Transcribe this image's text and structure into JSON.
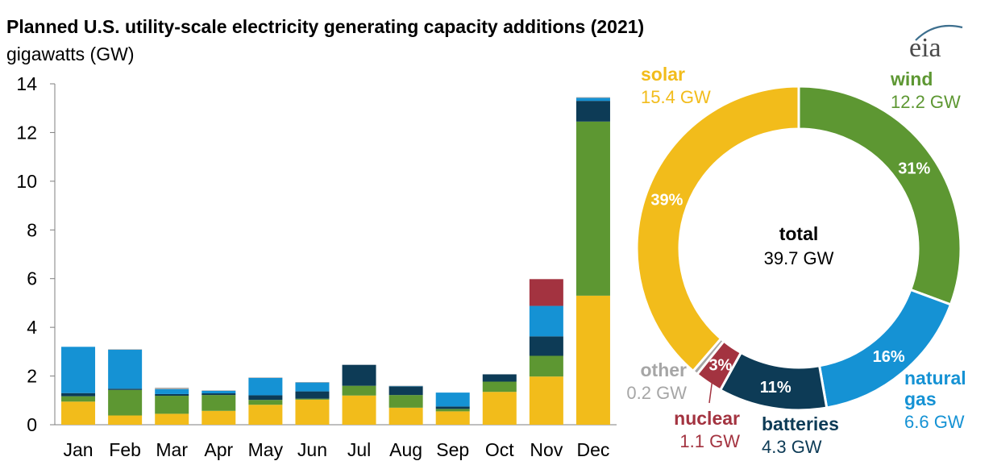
{
  "title": "Planned U.S. utility-scale electricity generating capacity additions (2021)",
  "subtitle": "gigawatts (GW)",
  "logo_text": "eia",
  "colors": {
    "solar": "#f2bc1b",
    "wind": "#5d9732",
    "natural_gas": "#1592d4",
    "batteries": "#0d3b56",
    "nuclear": "#a33340",
    "other": "#a6a6a6"
  },
  "chart_data": [
    {
      "type": "bar",
      "stacked": true,
      "categories": [
        "Jan",
        "Feb",
        "Mar",
        "Apr",
        "May",
        "Jun",
        "Jul",
        "Aug",
        "Sep",
        "Oct",
        "Nov",
        "Dec"
      ],
      "ylim": [
        0,
        14
      ],
      "yticks": [
        "0",
        "2",
        "4",
        "6",
        "8",
        "10",
        "12",
        "14"
      ],
      "grid": false,
      "series": [
        {
          "key": "solar",
          "values": [
            0.95,
            0.38,
            0.45,
            0.57,
            0.82,
            1.03,
            1.2,
            0.7,
            0.55,
            1.35,
            1.98,
            5.3
          ]
        },
        {
          "key": "wind",
          "values": [
            0.22,
            1.05,
            0.74,
            0.65,
            0.2,
            0.04,
            0.4,
            0.52,
            0.1,
            0.42,
            0.85,
            7.15
          ]
        },
        {
          "key": "batteries",
          "values": [
            0.13,
            0.05,
            0.07,
            0.07,
            0.19,
            0.3,
            0.86,
            0.35,
            0.1,
            0.3,
            0.8,
            0.85
          ]
        },
        {
          "key": "natural_gas",
          "values": [
            1.9,
            1.6,
            0.2,
            0.1,
            0.72,
            0.37,
            0,
            0.02,
            0.57,
            0,
            1.25,
            0.12
          ]
        },
        {
          "key": "nuclear",
          "values": [
            0,
            0,
            0,
            0,
            0,
            0,
            0,
            0,
            0,
            0,
            1.1,
            0
          ]
        },
        {
          "key": "other",
          "values": [
            0,
            0.02,
            0.06,
            0.02,
            0.01,
            0.01,
            0,
            0.01,
            0,
            0,
            0,
            0.03
          ]
        }
      ]
    },
    {
      "type": "pie",
      "donut": true,
      "center_label": "total",
      "center_value": "39.7 GW",
      "slices": [
        {
          "key": "wind",
          "name": "wind",
          "value": 12.2,
          "value_label": "12.2 GW",
          "percent_label": "31%"
        },
        {
          "key": "natural_gas",
          "name": "natural\ngas",
          "value": 6.6,
          "value_label": "6.6 GW",
          "percent_label": "16%"
        },
        {
          "key": "batteries",
          "name": "batteries",
          "value": 4.3,
          "value_label": "4.3 GW",
          "percent_label": "11%"
        },
        {
          "key": "nuclear",
          "name": "nuclear",
          "value": 1.1,
          "value_label": "1.1 GW",
          "percent_label": "3%"
        },
        {
          "key": "other",
          "name": "other",
          "value": 0.2,
          "value_label": "0.2 GW",
          "percent_label": ""
        },
        {
          "key": "solar",
          "name": "solar",
          "value": 15.4,
          "value_label": "15.4 GW",
          "percent_label": "39%"
        }
      ]
    }
  ]
}
